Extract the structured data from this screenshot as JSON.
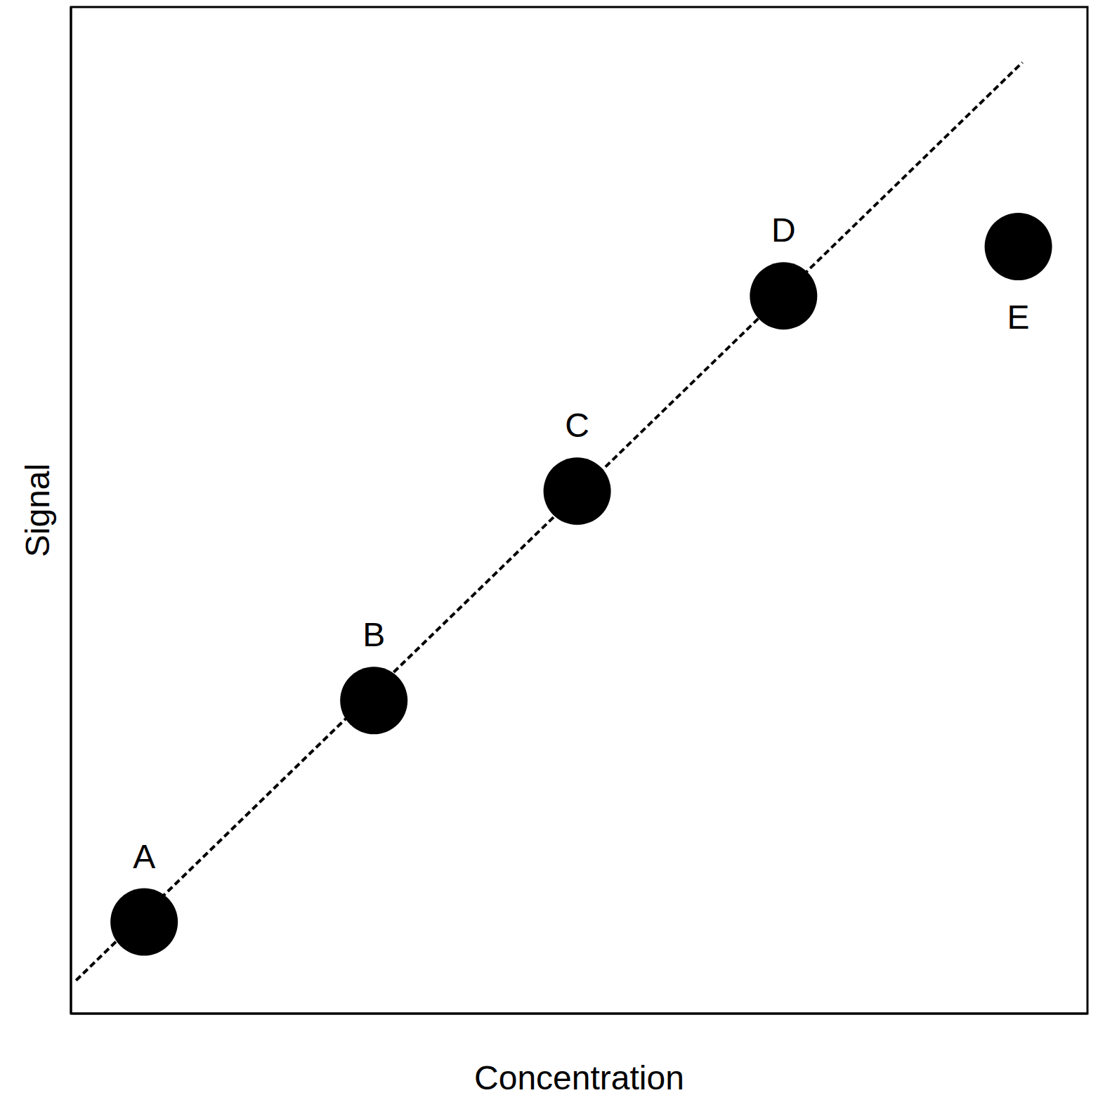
{
  "chart_data": {
    "type": "scatter",
    "x_label": "Concentration",
    "y_label": "Signal",
    "xlim": [
      0,
      100
    ],
    "ylim": [
      0,
      100
    ],
    "tick_labels": false,
    "grid": false,
    "series": [
      {
        "type": "line",
        "line_style": "dashed",
        "color": "#000000",
        "x": [
          0.5,
          93.6
        ],
        "values": [
          3.3,
          94.5
        ]
      },
      {
        "type": "scatter",
        "marker": "circle",
        "color": "#000000",
        "x": [
          7.2,
          29.8,
          49.8,
          70.1,
          93.2
        ],
        "values": [
          9.1,
          31.1,
          51.9,
          71.3,
          76.2
        ],
        "labels": [
          "A",
          "B",
          "C",
          "D",
          "E"
        ]
      }
    ]
  }
}
